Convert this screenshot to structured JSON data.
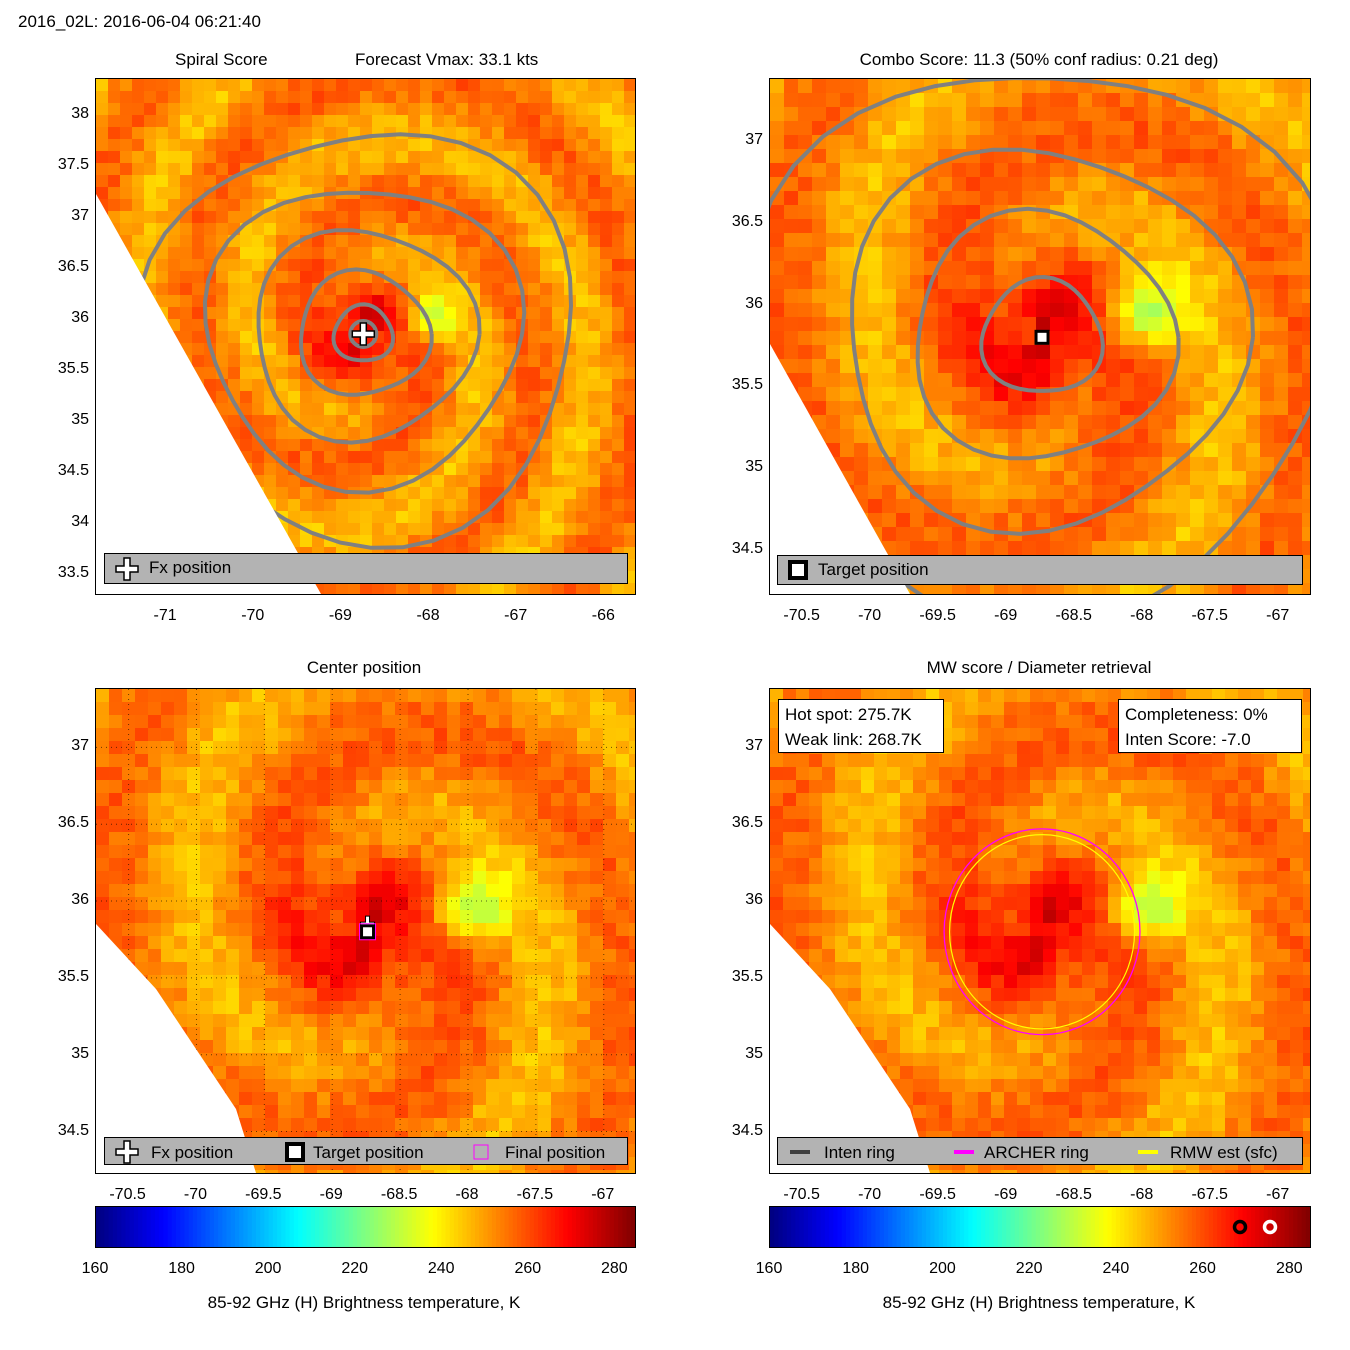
{
  "header": {
    "title": "2016_02L: 2016-06-04 06:21:40"
  },
  "panels": {
    "spiral": {
      "title_left": "Spiral Score",
      "title_right": "Forecast Vmax: 33.1 kts",
      "legend": [
        "Fx position"
      ]
    },
    "combo": {
      "title": "Combo Score: 11.3  (50% conf radius: 0.21 deg)",
      "legend": [
        "Target position"
      ]
    },
    "center": {
      "title": "Center position",
      "legend": [
        "Fx position",
        "Target position",
        "Final position"
      ]
    },
    "mw": {
      "title": "MW score / Diameter retrieval",
      "hot_spot": "Hot spot: 275.7K",
      "weak_link": "Weak link: 268.7K",
      "completeness": "Completeness: 0%",
      "inten_score": "Inten Score: -7.0",
      "legend": [
        "Inten ring",
        "ARCHER ring",
        "RMW est (sfc)"
      ]
    }
  },
  "colorbar": {
    "label": "85-92 GHz (H) Brightness temperature, K",
    "ticks": [
      "160",
      "180",
      "200",
      "220",
      "240",
      "260",
      "280"
    ]
  },
  "chart_data": [
    {
      "type": "heatmap",
      "title": "Spiral Score",
      "subtitle": "Forecast Vmax: 33.1 kts",
      "xticks": [
        "-71",
        "-70",
        "-69",
        "-68",
        "-67",
        "-66"
      ],
      "yticks": [
        "38",
        "37.5",
        "37",
        "36.5",
        "36",
        "35.5",
        "35",
        "34.5",
        "34",
        "33.5"
      ],
      "xlim": [
        -71.8,
        -65.65
      ],
      "ylim": [
        33.3,
        38.35
      ],
      "center": {
        "lon": -68.75,
        "lat": 35.85
      },
      "colorbar_range": [
        160,
        285
      ]
    },
    {
      "type": "heatmap",
      "title": "Combo Score: 11.3  (50% conf radius: 0.21 deg)",
      "xticks": [
        "-70.5",
        "-70",
        "-69.5",
        "-69",
        "-68.5",
        "-68",
        "-67.5",
        "-67"
      ],
      "yticks": [
        "37",
        "36.5",
        "36",
        "35.5",
        "35",
        "34.5"
      ],
      "xlim": [
        -70.74,
        -66.77
      ],
      "ylim": [
        34.23,
        37.38
      ],
      "center": {
        "lon": -68.74,
        "lat": 35.8
      }
    },
    {
      "type": "heatmap",
      "title": "Center position",
      "xticks": [
        "-70.5",
        "-70",
        "-69.5",
        "-69",
        "-68.5",
        "-68",
        "-67.5",
        "-67"
      ],
      "yticks": [
        "37",
        "36.5",
        "36",
        "35.5",
        "35",
        "34.5"
      ],
      "xlim": [
        -70.74,
        -66.77
      ],
      "ylim": [
        34.23,
        37.38
      ],
      "fx_position": {
        "lon": -68.74,
        "lat": 35.85
      },
      "target_position": {
        "lon": -68.74,
        "lat": 35.8
      },
      "final_position": {
        "lon": -68.74,
        "lat": 35.8
      },
      "colorbar_range": [
        160,
        285
      ]
    },
    {
      "type": "heatmap",
      "title": "MW score / Diameter retrieval",
      "xticks": [
        "-70.5",
        "-70",
        "-69.5",
        "-69",
        "-68.5",
        "-68",
        "-67.5",
        "-67"
      ],
      "yticks": [
        "37",
        "36.5",
        "36",
        "35.5",
        "35",
        "34.5"
      ],
      "xlim": [
        -70.74,
        -66.77
      ],
      "ylim": [
        34.23,
        37.38
      ],
      "archer_ring": {
        "lon": -68.74,
        "lat": 35.8,
        "radius_deg": 0.72
      },
      "rmw_ring": {
        "lon": -68.74,
        "lat": 35.8,
        "radius_deg": 0.68
      },
      "hot_spot_K": 275.7,
      "weak_link_K": 268.7,
      "completeness_pct": 0,
      "inten_score": -7.0,
      "colorbar_range": [
        160,
        285
      ]
    }
  ]
}
